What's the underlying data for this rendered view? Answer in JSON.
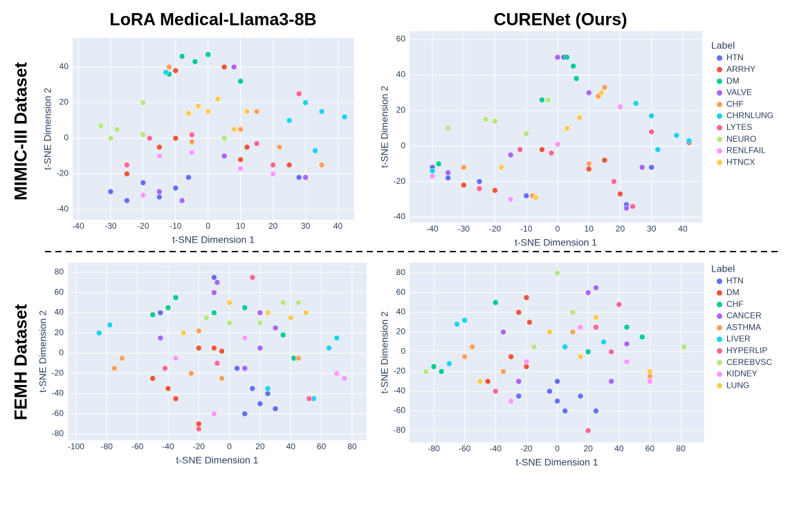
{
  "row_labels": [
    "MIMIC-III Dataset",
    "FEMH Dataset"
  ],
  "chart_data": [
    {
      "type": "scatter",
      "title": "LoRA Medical-Llama3-8B",
      "x_label": "t-SNE Dimension 1",
      "y_label": "t-SNE Dimension 2",
      "xlim": [
        -41.7,
        45
      ],
      "ylim": [
        -45.8,
        56.3
      ],
      "xticks": [
        -40,
        -30,
        -20,
        -10,
        0,
        10,
        20,
        30,
        40
      ],
      "yticks": [
        -40,
        -20,
        0,
        20,
        40
      ],
      "grid": true,
      "legend": false,
      "series": [
        {
          "color": "#636efa",
          "x": [
            -30,
            -25,
            -20,
            -15,
            -10,
            -6,
            28
          ],
          "y": [
            -30,
            -35,
            -25,
            -33,
            -28,
            -22,
            -22
          ]
        },
        {
          "color": "#ef553b",
          "x": [
            -25,
            -15,
            -10,
            10,
            12,
            25,
            -10,
            5
          ],
          "y": [
            -20,
            -5,
            0,
            -12,
            -5,
            -15,
            38,
            40
          ]
        },
        {
          "color": "#00cc96",
          "x": [
            -8,
            -4,
            0,
            -12,
            10
          ],
          "y": [
            46,
            43,
            47,
            36,
            32
          ]
        },
        {
          "color": "#ab63fa",
          "x": [
            -15,
            30,
            35,
            -8,
            8,
            5
          ],
          "y": [
            -30,
            -22,
            -15,
            -35,
            40,
            -10
          ]
        },
        {
          "color": "#ffa15a",
          "x": [
            10,
            15,
            -5,
            22,
            35,
            -12
          ],
          "y": [
            5,
            15,
            -2,
            -5,
            -15,
            40
          ]
        },
        {
          "color": "#19d3f3",
          "x": [
            30,
            35,
            42,
            33,
            25,
            -13
          ],
          "y": [
            20,
            15,
            12,
            -7,
            10,
            37
          ]
        },
        {
          "color": "#ff6692",
          "x": [
            -18,
            -5,
            28,
            20,
            -25,
            15
          ],
          "y": [
            0,
            2,
            25,
            -15,
            -15,
            -3
          ]
        },
        {
          "color": "#b6e880",
          "x": [
            -33,
            -28,
            -20,
            -30,
            -20,
            5
          ],
          "y": [
            7,
            5,
            20,
            0,
            2,
            0
          ]
        },
        {
          "color": "#ff97ff",
          "x": [
            -15,
            -5,
            10,
            -20,
            20
          ],
          "y": [
            -10,
            -8,
            -17,
            -32,
            -20
          ]
        },
        {
          "color": "#fecb52",
          "x": [
            0,
            -3,
            3,
            12,
            -6,
            8
          ],
          "y": [
            15,
            18,
            22,
            15,
            14,
            5
          ]
        }
      ]
    },
    {
      "type": "scatter",
      "title": "CURENet (Ours)",
      "x_label": "t-SNE Dimension 1",
      "y_label": "t-SNE Dimension 2",
      "xlim": [
        -47.3,
        46.2
      ],
      "ylim": [
        -43.1,
        64.7
      ],
      "xticks": [
        -40,
        -30,
        -20,
        -10,
        0,
        10,
        20,
        30,
        40
      ],
      "yticks": [
        -40,
        -20,
        0,
        20,
        40,
        60
      ],
      "grid": true,
      "legend": true,
      "legend_title": "Label",
      "series": [
        {
          "name": "HTN",
          "color": "#636efa",
          "x": [
            -40,
            -35,
            -25,
            -10,
            30,
            22,
            2
          ],
          "y": [
            -12,
            -18,
            -20,
            -28,
            -12,
            -33,
            50
          ]
        },
        {
          "name": "ARRHY",
          "color": "#ef553b",
          "x": [
            -30,
            -20,
            -5,
            10,
            15,
            20,
            42
          ],
          "y": [
            -22,
            -25,
            -2,
            -13,
            -8,
            -27,
            2
          ]
        },
        {
          "name": "DM",
          "color": "#00cc96",
          "x": [
            3,
            5,
            6,
            -5,
            -38
          ],
          "y": [
            50,
            45,
            38,
            26,
            -10
          ]
        },
        {
          "name": "VALVE",
          "color": "#ab63fa",
          "x": [
            -35,
            0,
            10,
            22,
            27,
            -15
          ],
          "y": [
            -15,
            50,
            30,
            -35,
            -12,
            -5
          ]
        },
        {
          "name": "CHF",
          "color": "#ffa15a",
          "x": [
            -8,
            13,
            15,
            -30,
            10
          ],
          "y": [
            -28,
            28,
            33,
            -12,
            -10
          ]
        },
        {
          "name": "CHRNLUNG",
          "color": "#19d3f3",
          "x": [
            25,
            30,
            38,
            42,
            -40,
            32
          ],
          "y": [
            24,
            17,
            6,
            3,
            -14,
            -2
          ]
        },
        {
          "name": "LYTES",
          "color": "#ff6692",
          "x": [
            -25,
            -12,
            -2,
            18,
            30,
            24
          ],
          "y": [
            -24,
            -2,
            -4,
            -20,
            8,
            -34
          ]
        },
        {
          "name": "NEURO",
          "color": "#b6e880",
          "x": [
            -23,
            -35,
            -10,
            -3,
            -20
          ],
          "y": [
            15,
            10,
            7,
            26,
            14
          ]
        },
        {
          "name": "RENLFAIL",
          "color": "#ff97ff",
          "x": [
            -15,
            0,
            20,
            -40
          ],
          "y": [
            -30,
            1,
            22,
            -17
          ]
        },
        {
          "name": "HTNCX",
          "color": "#fecb52",
          "x": [
            7,
            3,
            14,
            -18,
            -7
          ],
          "y": [
            16,
            10,
            30,
            -12,
            -29
          ]
        }
      ]
    },
    {
      "type": "scatter",
      "x_label": "t-SNE Dimension 1",
      "y_label": "t-SNE Dimension 2",
      "xlim": [
        -105.4,
        89.5
      ],
      "ylim": [
        -86.2,
        89.6
      ],
      "xticks": [
        -100,
        -80,
        -60,
        -40,
        -20,
        0,
        20,
        40,
        60,
        80
      ],
      "yticks": [
        -80,
        -60,
        -40,
        -20,
        0,
        20,
        40,
        60,
        80
      ],
      "grid": true,
      "legend": false,
      "series": [
        {
          "color": "#636efa",
          "x": [
            10,
            20,
            25,
            30,
            15,
            5,
            -10,
            -45
          ],
          "y": [
            -60,
            -50,
            -40,
            -55,
            -35,
            -15,
            75,
            40
          ]
        },
        {
          "color": "#ef553b",
          "x": [
            -50,
            -40,
            -35,
            -20,
            -20,
            -10,
            -5
          ],
          "y": [
            -25,
            -35,
            -45,
            -70,
            5,
            5,
            2
          ]
        },
        {
          "color": "#00cc96",
          "x": [
            -40,
            -50,
            -35,
            35,
            42,
            -10,
            10
          ],
          "y": [
            45,
            38,
            55,
            18,
            -5,
            40,
            45
          ]
        },
        {
          "color": "#ab63fa",
          "x": [
            -8,
            -10,
            20,
            30,
            -45,
            20,
            10
          ],
          "y": [
            70,
            60,
            40,
            25,
            15,
            5,
            -15
          ]
        },
        {
          "color": "#ffa15a",
          "x": [
            -70,
            -75,
            -25,
            -5,
            -20,
            45
          ],
          "y": [
            -5,
            -15,
            -20,
            -25,
            22,
            -5
          ]
        },
        {
          "color": "#19d3f3",
          "x": [
            -85,
            -78,
            70,
            65,
            25,
            55
          ],
          "y": [
            20,
            28,
            15,
            5,
            -35,
            -45
          ]
        },
        {
          "color": "#ff6692",
          "x": [
            -42,
            -20,
            15,
            52,
            -8
          ],
          "y": [
            -15,
            -75,
            75,
            -45,
            -10
          ]
        },
        {
          "color": "#b6e880",
          "x": [
            35,
            45,
            -15,
            0,
            20
          ],
          "y": [
            50,
            50,
            35,
            30,
            30
          ]
        },
        {
          "color": "#ff97ff",
          "x": [
            10,
            -35,
            75,
            70,
            -10
          ],
          "y": [
            15,
            -5,
            -25,
            -20,
            -60
          ]
        },
        {
          "color": "#fecb52",
          "x": [
            40,
            50,
            -30,
            0,
            25
          ],
          "y": [
            35,
            40,
            20,
            50,
            40
          ]
        }
      ]
    },
    {
      "type": "scatter",
      "x_label": "t-SNE Dimension 1",
      "y_label": "t-SNE Dimension 2",
      "xlim": [
        -95.7,
        95.2
      ],
      "ylim": [
        -91.9,
        90.5
      ],
      "xticks": [
        -80,
        -60,
        -40,
        -20,
        0,
        20,
        40,
        60,
        80
      ],
      "yticks": [
        -80,
        -60,
        -40,
        -20,
        0,
        20,
        40,
        60,
        80
      ],
      "grid": true,
      "legend": true,
      "legend_title": "Label",
      "series": [
        {
          "name": "HTN",
          "color": "#636efa",
          "x": [
            0,
            -5,
            5,
            0,
            25,
            15,
            -25
          ],
          "y": [
            -50,
            -40,
            -60,
            -30,
            -60,
            -45,
            -45
          ]
        },
        {
          "name": "DM",
          "color": "#ef553b",
          "x": [
            -20,
            -25,
            -20,
            -30,
            -45,
            -18
          ],
          "y": [
            55,
            40,
            -15,
            -5,
            -30,
            30
          ]
        },
        {
          "name": "CHF",
          "color": "#00cc96",
          "x": [
            -75,
            -80,
            45,
            55,
            -40,
            20
          ],
          "y": [
            -20,
            -15,
            25,
            15,
            50,
            0
          ]
        },
        {
          "name": "CANCER",
          "color": "#ab63fa",
          "x": [
            20,
            25,
            -35,
            35,
            45,
            -25
          ],
          "y": [
            60,
            65,
            20,
            -30,
            8,
            -30
          ]
        },
        {
          "name": "ASTHMA",
          "color": "#ffa15a",
          "x": [
            -55,
            -60,
            60,
            -35,
            10
          ],
          "y": [
            5,
            -5,
            -25,
            -20,
            20
          ]
        },
        {
          "name": "LIVER",
          "color": "#19d3f3",
          "x": [
            -65,
            -60,
            -70,
            5,
            30
          ],
          "y": [
            28,
            32,
            -12,
            5,
            10
          ]
        },
        {
          "name": "HYPERLIP",
          "color": "#ff6692",
          "x": [
            20,
            40,
            25,
            -40,
            35
          ],
          "y": [
            -80,
            48,
            25,
            -40,
            0
          ]
        },
        {
          "name": "CEREBVSC",
          "color": "#b6e880",
          "x": [
            0,
            82,
            -85,
            10,
            -15
          ],
          "y": [
            80,
            5,
            -20,
            40,
            5
          ]
        },
        {
          "name": "KIDNEY",
          "color": "#ff97ff",
          "x": [
            15,
            -20,
            45,
            -30,
            60
          ],
          "y": [
            25,
            -10,
            -10,
            -50,
            -30
          ]
        },
        {
          "name": "LUNG",
          "color": "#fecb52",
          "x": [
            25,
            60,
            -5,
            15,
            -50
          ],
          "y": [
            35,
            -20,
            20,
            -5,
            -30
          ]
        }
      ]
    }
  ]
}
